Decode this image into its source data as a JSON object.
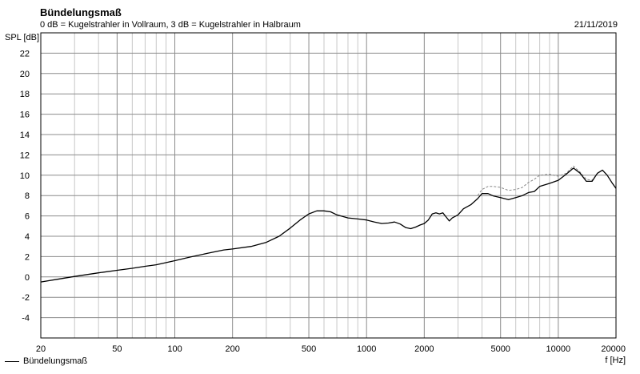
{
  "chart_data": {
    "type": "line",
    "title": "Bündelungsmaß",
    "subtitle": "0 dB = Kugelstrahler in Vollraum, 3 dB = Kugelstrahler in Halbraum",
    "date": "21/11/2019",
    "ylabel": "SPL [dB]",
    "xlabel": "f [Hz]",
    "xscale": "log",
    "xlim": [
      20,
      20000
    ],
    "ylim": [
      -6,
      24
    ],
    "grid": true,
    "x_ticks": [
      20,
      50,
      100,
      200,
      500,
      1000,
      2000,
      5000,
      10000,
      20000
    ],
    "x_tick_labels": [
      "20",
      "50",
      "100",
      "200",
      "500",
      "1000",
      "2000",
      "5000",
      "10000",
      "20000"
    ],
    "y_ticks": [
      -4,
      -2,
      0,
      2,
      4,
      6,
      8,
      10,
      12,
      14,
      16,
      18,
      20,
      22
    ],
    "y_tick_labels": [
      "-4",
      "-2",
      "0",
      "2",
      "4",
      "6",
      "8",
      "10",
      "12",
      "14",
      "16",
      "18",
      "20",
      "22"
    ],
    "legend": {
      "position": "bottom-left",
      "entries": [
        "Bündelungsmaß"
      ]
    },
    "series": [
      {
        "name": "Bündelungsmaß",
        "style": "solid",
        "color": "#000000",
        "x": [
          20,
          25,
          30,
          40,
          50,
          60,
          70,
          80,
          100,
          120,
          150,
          180,
          200,
          250,
          300,
          350,
          400,
          450,
          500,
          550,
          600,
          650,
          700,
          800,
          900,
          1000,
          1100,
          1200,
          1300,
          1400,
          1500,
          1600,
          1700,
          1800,
          1900,
          2000,
          2100,
          2200,
          2300,
          2400,
          2500,
          2600,
          2700,
          2800,
          3000,
          3200,
          3500,
          3800,
          4000,
          4300,
          4600,
          5000,
          5500,
          6000,
          6500,
          7000,
          7500,
          8000,
          9000,
          10000,
          11000,
          12000,
          13000,
          14000,
          15000,
          16000,
          17000,
          18000,
          19000,
          20000
        ],
        "y": [
          -0.5,
          -0.2,
          0.05,
          0.4,
          0.65,
          0.85,
          1.05,
          1.2,
          1.6,
          1.95,
          2.35,
          2.65,
          2.75,
          3.0,
          3.4,
          4.0,
          4.8,
          5.6,
          6.2,
          6.5,
          6.5,
          6.4,
          6.1,
          5.8,
          5.7,
          5.6,
          5.4,
          5.25,
          5.3,
          5.4,
          5.2,
          4.85,
          4.75,
          4.9,
          5.1,
          5.25,
          5.6,
          6.2,
          6.3,
          6.2,
          6.3,
          5.9,
          5.5,
          5.8,
          6.1,
          6.7,
          7.1,
          7.7,
          8.2,
          8.2,
          7.95,
          7.8,
          7.6,
          7.8,
          8.0,
          8.3,
          8.4,
          8.9,
          9.2,
          9.5,
          10.1,
          10.7,
          10.2,
          9.4,
          9.4,
          10.2,
          10.5,
          10.0,
          9.3,
          8.7
        ]
      },
      {
        "name": "",
        "style": "dashed",
        "color": "#888888",
        "x": [
          3800,
          4000,
          4300,
          4600,
          5000,
          5500,
          6000,
          6500,
          7000,
          7500,
          8000,
          9000,
          10000,
          11000,
          12000,
          13000,
          14000,
          15000,
          16000
        ],
        "y": [
          8.0,
          8.6,
          8.9,
          8.9,
          8.8,
          8.5,
          8.6,
          8.8,
          9.3,
          9.6,
          10.0,
          10.1,
          9.9,
          10.2,
          10.9,
          10.3,
          9.6,
          9.5,
          10.2
        ]
      }
    ]
  }
}
